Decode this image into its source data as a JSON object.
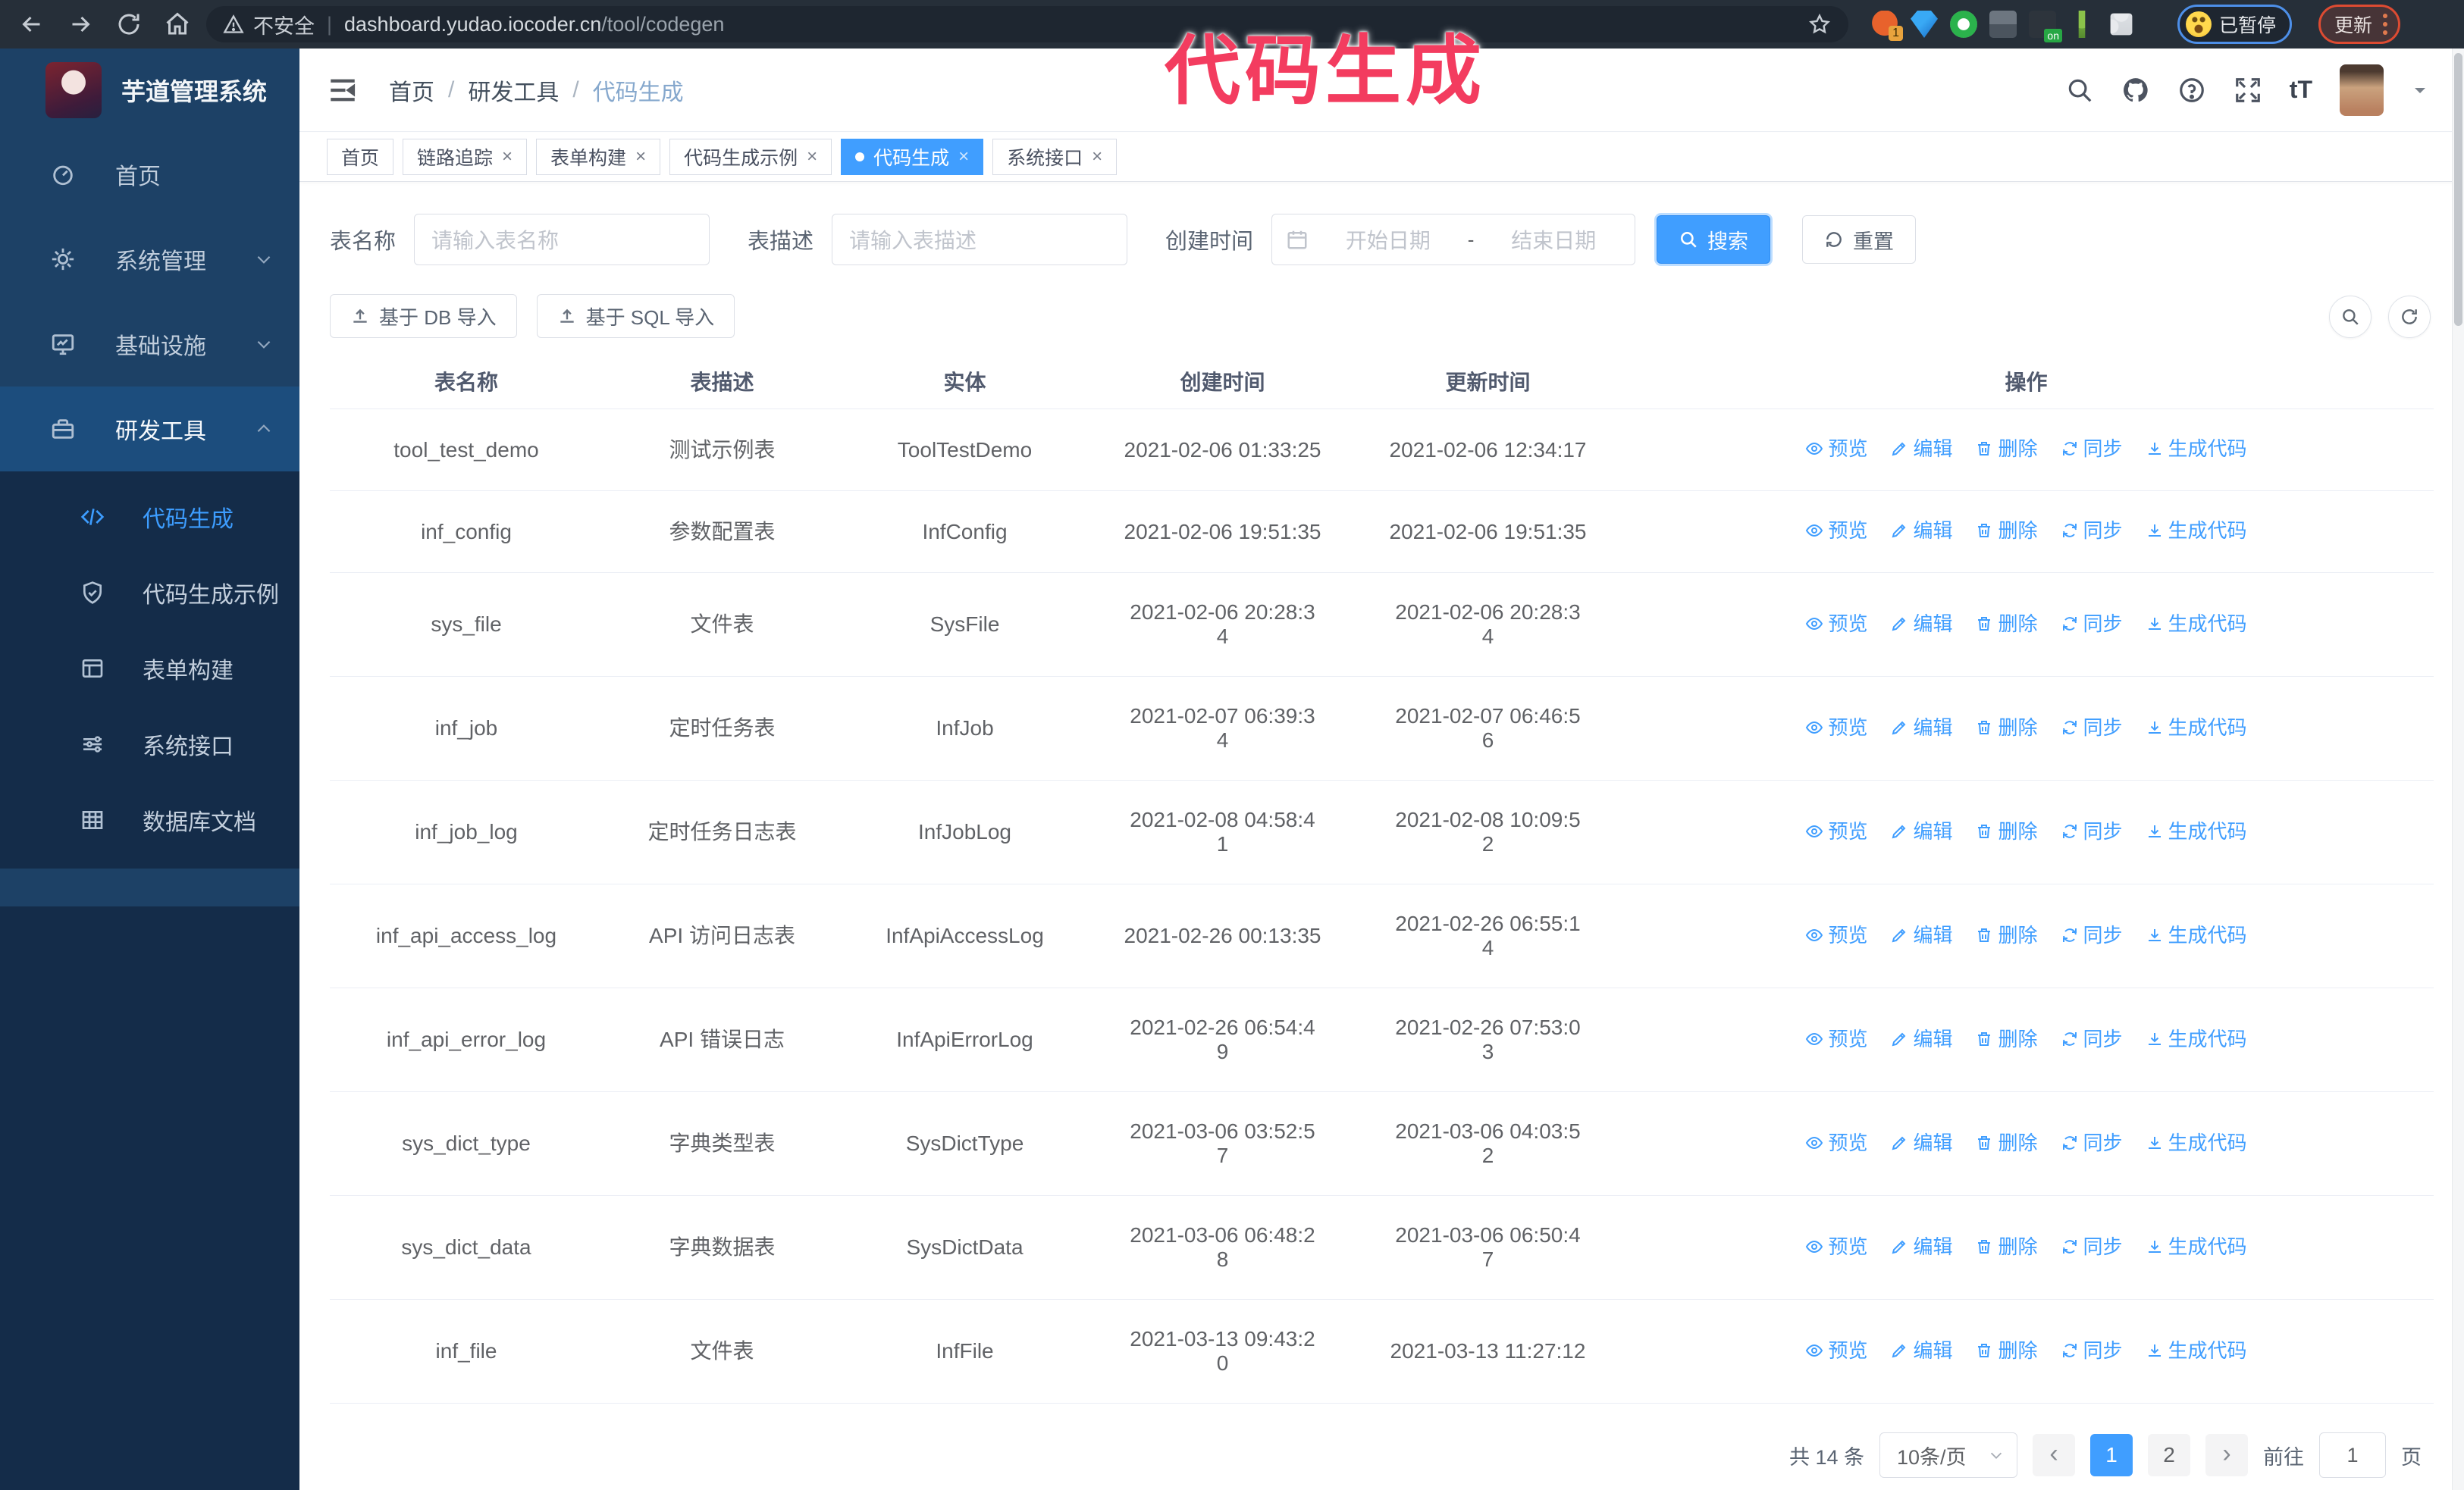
{
  "ui_colors": {
    "primary": "#409eff",
    "annotation_pink": "#f33c5f",
    "sidebar_bg": "#1d4166",
    "submenu_bg": "#142c49"
  },
  "annotation": {
    "text": "代码生成"
  },
  "browser": {
    "security_label": "不安全",
    "url_host": "dashboard.yudao.iocoder.cn",
    "url_path": "/tool/codegen",
    "divider": "|",
    "extension_badge": "1",
    "extension_on_badge": "on",
    "paused_badge": "已暂停",
    "update_button": "更新"
  },
  "sidebar": {
    "logo_title": "芋道管理系统",
    "items": [
      {
        "label": "首页"
      },
      {
        "label": "系统管理"
      },
      {
        "label": "基础设施"
      },
      {
        "label": "研发工具"
      }
    ],
    "submenu": [
      {
        "label": "代码生成"
      },
      {
        "label": "代码生成示例"
      },
      {
        "label": "表单构建"
      },
      {
        "label": "系统接口"
      },
      {
        "label": "数据库文档"
      }
    ]
  },
  "header": {
    "breadcrumb": [
      "首页",
      "研发工具",
      "代码生成"
    ],
    "breadcrumb_separator": "/",
    "font_size_icon_text": "tT"
  },
  "tabs": [
    {
      "label": "首页",
      "closable": false
    },
    {
      "label": "链路追踪",
      "closable": true
    },
    {
      "label": "表单构建",
      "closable": true
    },
    {
      "label": "代码生成示例",
      "closable": true
    },
    {
      "label": "代码生成",
      "closable": true,
      "active": true
    },
    {
      "label": "系统接口",
      "closable": true
    }
  ],
  "filters": {
    "table_name_label": "表名称",
    "table_name_placeholder": "请输入表名称",
    "table_desc_label": "表描述",
    "table_desc_placeholder": "请输入表描述",
    "create_time_label": "创建时间",
    "date_start_placeholder": "开始日期",
    "date_separator": "-",
    "date_end_placeholder": "结束日期",
    "search_label": "搜索",
    "reset_label": "重置"
  },
  "toolbar": {
    "import_db_label": "基于 DB 导入",
    "import_sql_label": "基于 SQL 导入"
  },
  "table": {
    "columns": [
      "表名称",
      "表描述",
      "实体",
      "创建时间",
      "更新时间",
      "操作"
    ],
    "actions": [
      "预览",
      "编辑",
      "删除",
      "同步",
      "生成代码"
    ],
    "rows": [
      {
        "name": "tool_test_demo",
        "desc": "测试示例表",
        "entity": "ToolTestDemo",
        "created": "2021-02-06 01:33:25",
        "updated": "2021-02-06 12:34:17"
      },
      {
        "name": "inf_config",
        "desc": "参数配置表",
        "entity": "InfConfig",
        "created": "2021-02-06 19:51:35",
        "updated": "2021-02-06 19:51:35"
      },
      {
        "name": "sys_file",
        "desc": "文件表",
        "entity": "SysFile",
        "created": "2021-02-06 20:28:3\n4",
        "updated": "2021-02-06 20:28:3\n4"
      },
      {
        "name": "inf_job",
        "desc": "定时任务表",
        "entity": "InfJob",
        "created": "2021-02-07 06:39:3\n4",
        "updated": "2021-02-07 06:46:5\n6"
      },
      {
        "name": "inf_job_log",
        "desc": "定时任务日志表",
        "entity": "InfJobLog",
        "created": "2021-02-08 04:58:4\n1",
        "updated": "2021-02-08 10:09:5\n2"
      },
      {
        "name": "inf_api_access_log",
        "desc": "API 访问日志表",
        "entity": "InfApiAccessLog",
        "created": "2021-02-26 00:13:35",
        "updated": "2021-02-26 06:55:1\n4"
      },
      {
        "name": "inf_api_error_log",
        "desc": "API 错误日志",
        "entity": "InfApiErrorLog",
        "created": "2021-02-26 06:54:4\n9",
        "updated": "2021-02-26 07:53:0\n3"
      },
      {
        "name": "sys_dict_type",
        "desc": "字典类型表",
        "entity": "SysDictType",
        "created": "2021-03-06 03:52:5\n7",
        "updated": "2021-03-06 04:03:5\n2"
      },
      {
        "name": "sys_dict_data",
        "desc": "字典数据表",
        "entity": "SysDictData",
        "created": "2021-03-06 06:48:2\n8",
        "updated": "2021-03-06 06:50:4\n7"
      },
      {
        "name": "inf_file",
        "desc": "文件表",
        "entity": "InfFile",
        "created": "2021-03-13 09:43:2\n0",
        "updated": "2021-03-13 11:27:12"
      }
    ]
  },
  "pagination": {
    "total_label": "共 14 条",
    "page_size_label": "10条/页",
    "prev_arrow": "‹",
    "next_arrow": "›",
    "pages": [
      "1",
      "2"
    ],
    "active_page": "1",
    "goto_label": "前往",
    "goto_value": "1",
    "page_suffix": "页"
  }
}
